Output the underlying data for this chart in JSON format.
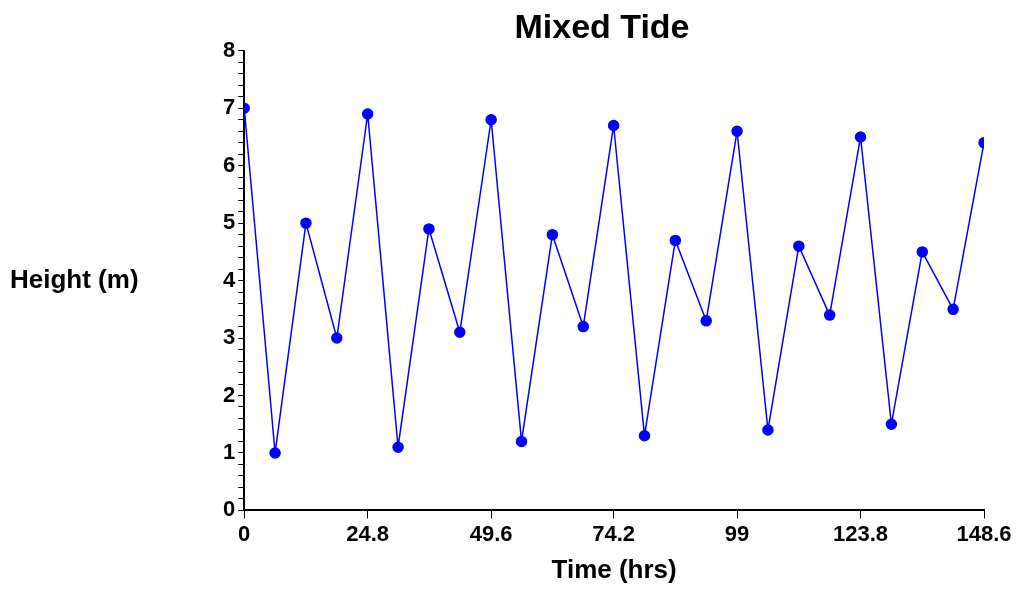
{
  "chart_data": {
    "type": "line",
    "title": "Mixed Tide",
    "xlabel": "Time (hrs)",
    "ylabel": "Height (m)",
    "x": [
      0,
      6.2,
      12.4,
      18.6,
      24.8,
      30.9,
      37.1,
      43.3,
      49.6,
      55.7,
      61.9,
      68.1,
      74.2,
      80.4,
      86.6,
      92.8,
      99,
      105.2,
      111.4,
      117.6,
      123.8,
      130,
      136.2,
      142.4,
      148.6
    ],
    "series": [
      {
        "color": "#0000ff",
        "values": [
          7,
          1,
          5,
          3,
          6.9,
          1.1,
          4.9,
          3.1,
          6.8,
          1.2,
          4.8,
          3.2,
          6.7,
          1.3,
          4.7,
          3.3,
          6.6,
          1.4,
          4.6,
          3.4,
          6.5,
          1.5,
          4.5,
          3.5,
          6.4
        ]
      }
    ],
    "xlim": [
      0,
      148.6
    ],
    "xticks": [
      0,
      24.8,
      49.6,
      74.2,
      99,
      123.8,
      148.6
    ],
    "ylim": [
      0,
      8
    ],
    "yticks": [
      0,
      {
        "value": 0.2,
        "label": null
      },
      {
        "value": 0.4,
        "label": null
      },
      {
        "value": 0.6,
        "label": null
      },
      {
        "value": 0.8,
        "label": null
      },
      1,
      {
        "value": 1.2,
        "label": null
      },
      {
        "value": 1.4,
        "label": null
      },
      {
        "value": 1.6,
        "label": null
      },
      {
        "value": 1.8,
        "label": null
      },
      2,
      {
        "value": 2.2,
        "label": null
      },
      {
        "value": 2.4,
        "label": null
      },
      {
        "value": 2.6,
        "label": null
      },
      {
        "value": 2.8,
        "label": null
      },
      3,
      {
        "value": 3.2,
        "label": null
      },
      {
        "value": 3.4,
        "label": null
      },
      {
        "value": 3.6,
        "label": null
      },
      {
        "value": 3.8,
        "label": null
      },
      4,
      {
        "value": 4.2,
        "label": null
      },
      {
        "value": 4.4,
        "label": null
      },
      {
        "value": 4.6,
        "label": null
      },
      {
        "value": 4.8,
        "label": null
      },
      5,
      {
        "value": 5.2,
        "label": null
      },
      {
        "value": 5.4,
        "label": null
      },
      {
        "value": 5.6,
        "label": null
      },
      {
        "value": 5.8,
        "label": null
      },
      6,
      {
        "value": 6.2,
        "label": null
      },
      {
        "value": 6.4,
        "label": null
      },
      {
        "value": 6.6,
        "label": null
      },
      {
        "value": 6.8,
        "label": null
      },
      7,
      {
        "value": 7.2,
        "label": null
      },
      {
        "value": 7.4,
        "label": null
      },
      {
        "value": 7.6,
        "label": null
      },
      {
        "value": 7.8,
        "label": null
      },
      8
    ],
    "marker": "circle",
    "line_style": "solid",
    "grid": false,
    "legend": false
  }
}
